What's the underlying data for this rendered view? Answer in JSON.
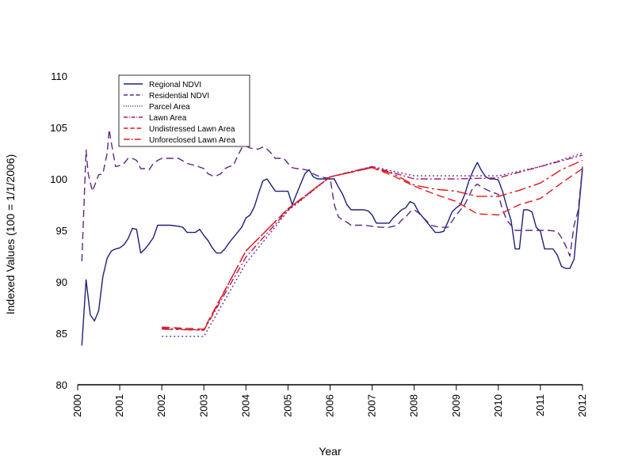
{
  "chart_data": {
    "type": "line",
    "title": "",
    "xlabel": "Year",
    "ylabel": "Indexed Values (100 = 1/1/2006)",
    "xlim": [
      2000,
      2012
    ],
    "ylim": [
      80,
      110
    ],
    "x_ticks": [
      "2000",
      "2001",
      "2002",
      "2003",
      "2004",
      "2005",
      "2006",
      "2007",
      "2008",
      "2009",
      "2010",
      "2011",
      "2012"
    ],
    "y_ticks": [
      "80",
      "85",
      "90",
      "95",
      "100",
      "105",
      "110"
    ],
    "legend_position": "top-left",
    "series": [
      {
        "name": "Regional NDVI",
        "color": "#1f1f7a",
        "dash": "solid",
        "x": [
          2000.1,
          2000.2,
          2000.3,
          2000.4,
          2000.5,
          2000.6,
          2000.7,
          2000.8,
          2000.9,
          2001.0,
          2001.1,
          2001.2,
          2001.3,
          2001.4,
          2001.5,
          2001.6,
          2001.7,
          2001.8,
          2001.9,
          2002.0,
          2002.2,
          2002.4,
          2002.5,
          2002.6,
          2002.7,
          2002.8,
          2002.9,
          2003.0,
          2003.1,
          2003.2,
          2003.3,
          2003.4,
          2003.5,
          2003.6,
          2003.7,
          2003.8,
          2003.9,
          2004.0,
          2004.1,
          2004.2,
          2004.3,
          2004.4,
          2004.5,
          2004.6,
          2004.7,
          2004.8,
          2004.9,
          2005.0,
          2005.1,
          2005.2,
          2005.3,
          2005.4,
          2005.5,
          2005.6,
          2005.7,
          2005.8,
          2005.9,
          2006.0,
          2006.1,
          2006.2,
          2006.3,
          2006.4,
          2006.5,
          2006.6,
          2006.7,
          2006.8,
          2006.9,
          2007.0,
          2007.1,
          2007.2,
          2007.3,
          2007.4,
          2007.5,
          2007.6,
          2007.7,
          2007.8,
          2007.9,
          2008.0,
          2008.1,
          2008.2,
          2008.3,
          2008.4,
          2008.5,
          2008.6,
          2008.7,
          2008.8,
          2008.9,
          2009.0,
          2009.1,
          2009.2,
          2009.3,
          2009.4,
          2009.5,
          2009.6,
          2009.7,
          2009.8,
          2009.9,
          2010.0,
          2010.1,
          2010.2,
          2010.3,
          2010.4,
          2010.5,
          2010.6,
          2010.7,
          2010.8,
          2010.9,
          2011.0,
          2011.1,
          2011.2,
          2011.3,
          2011.4,
          2011.5,
          2011.6,
          2011.7,
          2011.8,
          2011.9,
          2012.0
        ],
        "y": [
          83.8,
          90.2,
          86.8,
          86.2,
          87.2,
          90.5,
          92.3,
          93.0,
          93.2,
          93.3,
          93.6,
          94.2,
          95.2,
          95.1,
          92.8,
          93.2,
          93.7,
          94.3,
          95.5,
          95.5,
          95.5,
          95.4,
          95.3,
          94.8,
          94.8,
          94.8,
          95.1,
          94.5,
          94.0,
          93.3,
          92.8,
          92.8,
          93.2,
          93.8,
          94.3,
          94.8,
          95.3,
          96.2,
          96.5,
          97.3,
          98.6,
          99.8,
          100.0,
          99.4,
          98.8,
          98.8,
          98.8,
          98.8,
          97.5,
          98.5,
          99.5,
          100.5,
          100.9,
          100.2,
          100.0,
          100.0,
          100.0,
          100.0,
          100.0,
          99.2,
          98.5,
          97.5,
          97.0,
          97.0,
          97.0,
          97.0,
          96.9,
          96.5,
          95.7,
          95.7,
          95.7,
          95.7,
          96.2,
          96.6,
          97.0,
          97.2,
          97.8,
          97.6,
          96.8,
          96.3,
          95.8,
          95.3,
          94.8,
          94.8,
          94.9,
          95.8,
          96.8,
          97.2,
          97.5,
          98.5,
          99.8,
          100.8,
          101.6,
          100.8,
          100.2,
          100.0,
          100.0,
          99.9,
          98.8,
          97.3,
          96.0,
          93.2,
          93.2,
          97.0,
          97.0,
          96.8,
          95.3,
          94.9,
          93.2,
          93.2,
          93.2,
          92.6,
          91.5,
          91.3,
          91.3,
          92.2,
          96.5,
          101.0
        ]
      },
      {
        "name": "Residential NDVI",
        "color": "#5b2a86",
        "dash": "9,5",
        "x": [
          2000.1,
          2000.2,
          2000.25,
          2000.35,
          2000.5,
          2000.6,
          2000.7,
          2000.75,
          2000.8,
          2000.9,
          2001.0,
          2001.1,
          2001.2,
          2001.3,
          2001.4,
          2001.5,
          2001.6,
          2001.7,
          2001.8,
          2001.9,
          2002.0,
          2002.2,
          2002.4,
          2002.6,
          2002.8,
          2003.0,
          2003.1,
          2003.2,
          2003.3,
          2003.4,
          2003.5,
          2003.6,
          2003.7,
          2003.8,
          2003.9,
          2004.0,
          2004.1,
          2004.2,
          2004.3,
          2004.4,
          2004.5,
          2004.6,
          2004.7,
          2004.8,
          2004.9,
          2005.0,
          2005.1,
          2005.2,
          2005.3,
          2005.4,
          2005.5,
          2005.6,
          2005.7,
          2005.8,
          2005.9,
          2006.0,
          2006.1,
          2006.2,
          2006.3,
          2006.4,
          2006.5,
          2006.6,
          2006.8,
          2007.0,
          2007.2,
          2007.4,
          2007.6,
          2007.7,
          2007.8,
          2007.9,
          2008.0,
          2008.1,
          2008.2,
          2008.4,
          2008.6,
          2008.8,
          2009.0,
          2009.2,
          2009.3,
          2009.4,
          2009.5,
          2009.6,
          2009.8,
          2010.0,
          2010.1,
          2010.2,
          2010.3,
          2010.4,
          2010.5,
          2010.6,
          2010.8,
          2011.0,
          2011.2,
          2011.4,
          2011.5,
          2011.6,
          2011.7,
          2011.8,
          2011.9,
          2012.0
        ],
        "y": [
          92.0,
          102.8,
          100.5,
          98.8,
          100.4,
          100.5,
          102.5,
          104.8,
          103.5,
          101.2,
          101.3,
          101.5,
          102.0,
          102.0,
          101.8,
          101.0,
          101.0,
          100.9,
          101.5,
          101.8,
          102.0,
          102.0,
          102.0,
          101.5,
          101.3,
          101.0,
          100.5,
          100.3,
          100.3,
          100.5,
          101.0,
          101.2,
          101.3,
          102.2,
          103.0,
          103.2,
          103.0,
          102.9,
          102.9,
          103.1,
          102.9,
          102.5,
          102.0,
          102.0,
          102.0,
          101.5,
          101.1,
          101.0,
          101.0,
          100.9,
          100.8,
          100.5,
          100.3,
          100.2,
          100.1,
          100.1,
          97.5,
          96.3,
          96.0,
          95.8,
          95.5,
          95.5,
          95.5,
          95.4,
          95.3,
          95.3,
          95.5,
          96.0,
          96.3,
          96.8,
          97.0,
          96.7,
          96.3,
          95.5,
          95.3,
          95.3,
          96.5,
          97.5,
          98.3,
          99.2,
          99.5,
          99.2,
          98.8,
          98.5,
          97.0,
          96.0,
          95.5,
          95.0,
          95.0,
          95.0,
          95.0,
          95.0,
          95.0,
          94.9,
          94.3,
          93.5,
          92.5,
          95.5,
          97.0,
          101.2
        ]
      },
      {
        "name": "Parcel Area",
        "color": "#6b2c8f",
        "dash": "2,3",
        "x": [
          2002.0,
          2003.0,
          2004.0,
          2005.0,
          2006.0,
          2007.0,
          2008.0,
          2009.0,
          2010.0,
          2011.0,
          2012.0
        ],
        "y": [
          84.7,
          84.7,
          91.8,
          96.9,
          100.2,
          101.2,
          100.3,
          100.3,
          100.3,
          101.2,
          102.5
        ]
      },
      {
        "name": "Lawn Area",
        "color": "#a01f7a",
        "dash": "9,3,2,3",
        "x": [
          2002.0,
          2003.0,
          2004.0,
          2005.0,
          2006.0,
          2007.0,
          2008.0,
          2009.0,
          2010.0,
          2011.0,
          2012.0
        ],
        "y": [
          85.5,
          85.3,
          92.4,
          97.0,
          100.2,
          101.2,
          100.0,
          100.0,
          100.1,
          101.2,
          102.3
        ]
      },
      {
        "name": "Undistressed Lawn Area",
        "color": "#e01818",
        "dash": "10,5",
        "x": [
          2002.0,
          2003.0,
          2004.0,
          2005.0,
          2006.0,
          2007.0,
          2007.5,
          2008.0,
          2008.5,
          2009.0,
          2009.5,
          2010.0,
          2010.5,
          2011.0,
          2011.5,
          2012.0
        ],
        "y": [
          85.6,
          85.4,
          93.0,
          97.1,
          100.2,
          101.1,
          100.3,
          99.3,
          98.5,
          97.8,
          96.6,
          96.5,
          97.5,
          98.1,
          99.6,
          101.0
        ]
      },
      {
        "name": "Unforeclosed Lawn Area",
        "color": "#e01818",
        "dash": "14,4,3,4",
        "x": [
          2002.0,
          2003.0,
          2004.0,
          2005.0,
          2006.0,
          2007.0,
          2007.5,
          2008.0,
          2008.5,
          2009.0,
          2009.5,
          2010.0,
          2010.5,
          2011.0,
          2011.5,
          2012.0
        ],
        "y": [
          85.4,
          85.3,
          93.0,
          97.1,
          100.2,
          101.1,
          100.5,
          99.4,
          99.0,
          98.8,
          98.3,
          98.3,
          98.9,
          99.6,
          100.9,
          101.8
        ]
      }
    ]
  }
}
